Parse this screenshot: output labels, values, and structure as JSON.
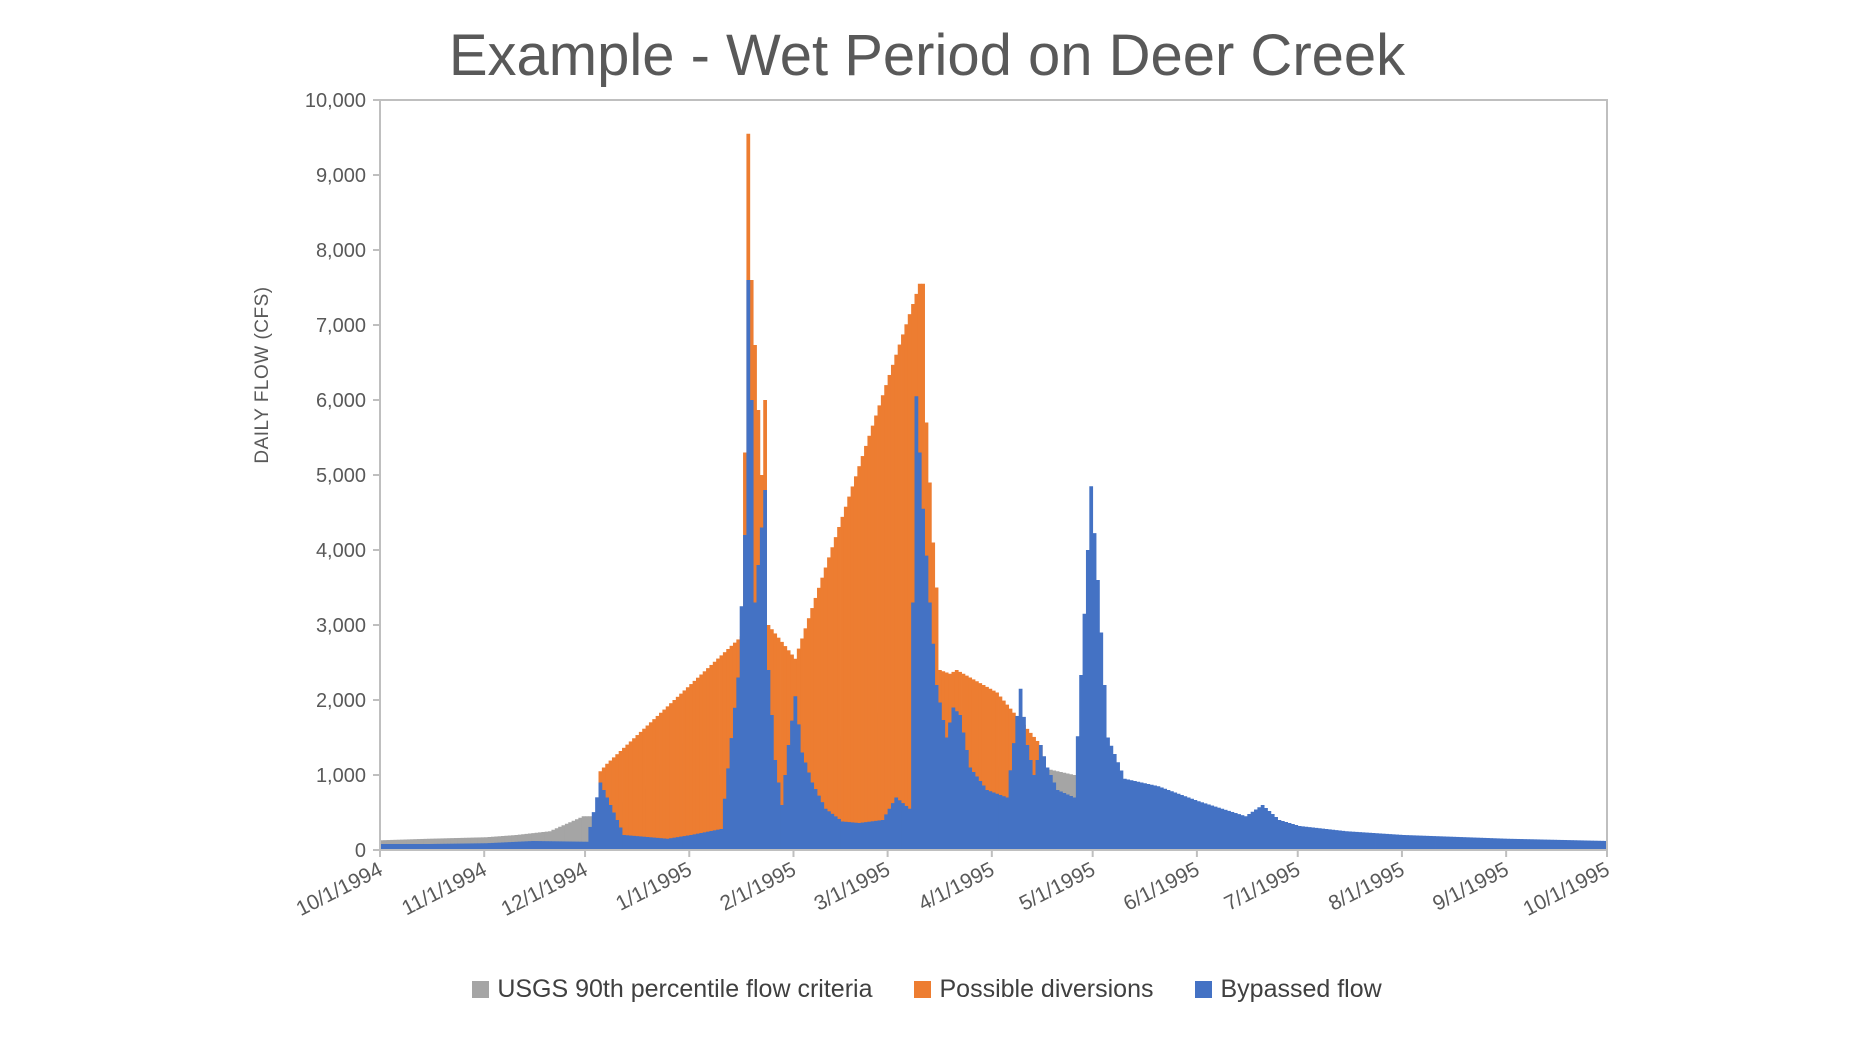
{
  "chart_data": {
    "type": "bar",
    "stacked": true,
    "title": "Example - Wet Period on Deer Creek",
    "xlabel": "",
    "ylabel": "DAILY FLOW (CFS)",
    "ylim": [
      0,
      10000
    ],
    "y_ticks": [
      "0",
      "1,000",
      "2,000",
      "3,000",
      "4,000",
      "5,000",
      "6,000",
      "7,000",
      "8,000",
      "9,000",
      "10,000"
    ],
    "x_range": [
      "10/1/1994",
      "10/1/1995"
    ],
    "x_ticks": [
      "10/1/1994",
      "11/1/1994",
      "12/1/1994",
      "1/1/1995",
      "2/1/1995",
      "3/1/1995",
      "4/1/1995",
      "5/1/1995",
      "6/1/1995",
      "7/1/1995",
      "8/1/1995",
      "9/1/1995",
      "10/1/1995"
    ],
    "grid": false,
    "legend_position": "bottom",
    "colors": {
      "criteria": "#a5a5a5",
      "diversions": "#ed7d31",
      "bypassed": "#4472c4",
      "axis": "#bfbfbf"
    },
    "series": [
      {
        "name": "USGS 90th percentile flow criteria",
        "points": [
          [
            "10/1/1994",
            130
          ],
          [
            "10/15/1994",
            150
          ],
          [
            "11/1/1994",
            170
          ],
          [
            "11/10/1994",
            200
          ],
          [
            "11/20/1994",
            250
          ],
          [
            "11/25/1994",
            350
          ],
          [
            "11/30/1994",
            450
          ],
          [
            "12/5/1994",
            450
          ],
          [
            "12/10/1994",
            600
          ],
          [
            "12/15/1994",
            700
          ],
          [
            "12/20/1994",
            900
          ],
          [
            "12/25/1994",
            1300
          ],
          [
            "12/28/1994",
            1500
          ],
          [
            "1/1/1995",
            1200
          ],
          [
            "1/5/1995",
            1000
          ],
          [
            "1/10/1995",
            1000
          ],
          [
            "1/20/1995",
            1800
          ],
          [
            "1/25/1995",
            1600
          ],
          [
            "1/28/1995",
            1400
          ],
          [
            "2/1/1995",
            1500
          ],
          [
            "2/5/1995",
            1400
          ],
          [
            "2/10/1995",
            1600
          ],
          [
            "2/15/1995",
            1500
          ],
          [
            "2/20/1995",
            1800
          ],
          [
            "2/24/1995",
            2000
          ],
          [
            "2/27/1995",
            1500
          ],
          [
            "3/1/1995",
            1400
          ],
          [
            "3/5/1995",
            1350
          ],
          [
            "3/10/1995",
            1300
          ],
          [
            "3/15/1995",
            1200
          ],
          [
            "3/20/1995",
            1100
          ],
          [
            "3/25/1995",
            1200
          ],
          [
            "3/30/1995",
            1200
          ],
          [
            "4/5/1995",
            1050
          ],
          [
            "4/10/1995",
            1150
          ],
          [
            "4/15/1995",
            1100
          ],
          [
            "4/20/1995",
            1050
          ],
          [
            "4/25/1995",
            1000
          ],
          [
            "4/30/1995",
            950
          ]
        ]
      },
      {
        "name": "Possible diversions",
        "points": [
          [
            "12/5/1994",
            1050
          ],
          [
            "12/7/1994",
            1150
          ],
          [
            "1/16/1995",
            2850
          ],
          [
            "1/17/1995",
            5300
          ],
          [
            "1/18/1995",
            9550
          ],
          [
            "1/19/1995",
            7600
          ],
          [
            "1/22/1995",
            5000
          ],
          [
            "1/23/1995",
            6000
          ],
          [
            "1/24/1995",
            3000
          ],
          [
            "2/1/1995",
            2550
          ],
          [
            "3/10/1995",
            7550
          ],
          [
            "3/11/1995",
            7550
          ],
          [
            "3/12/1995",
            5700
          ],
          [
            "3/14/1995",
            4100
          ],
          [
            "3/15/1995",
            3500
          ],
          [
            "3/16/1995",
            2400
          ],
          [
            "3/19/1995",
            2350
          ],
          [
            "3/21/1995",
            2400
          ],
          [
            "4/2/1995",
            2100
          ],
          [
            "4/15/1995",
            1400
          ]
        ]
      },
      {
        "name": "Bypassed flow",
        "points": [
          [
            "10/1/1994",
            80
          ],
          [
            "10/15/1994",
            80
          ],
          [
            "11/1/1994",
            90
          ],
          [
            "11/15/1994",
            120
          ],
          [
            "12/1/1994",
            110
          ],
          [
            "12/5/1994",
            900
          ],
          [
            "12/8/1994",
            600
          ],
          [
            "12/12/1994",
            200
          ],
          [
            "12/25/1994",
            150
          ],
          [
            "1/1/1995",
            200
          ],
          [
            "1/10/1995",
            280
          ],
          [
            "1/15/1995",
            2300
          ],
          [
            "1/17/1995",
            4200
          ],
          [
            "1/18/1995",
            7600
          ],
          [
            "1/19/1995",
            6000
          ],
          [
            "1/20/1995",
            3300
          ],
          [
            "1/22/1995",
            4300
          ],
          [
            "1/23/1995",
            4800
          ],
          [
            "1/24/1995",
            2400
          ],
          [
            "1/26/1995",
            1200
          ],
          [
            "1/28/1995",
            600
          ],
          [
            "1/30/1995",
            1400
          ],
          [
            "2/1/1995",
            2050
          ],
          [
            "2/3/1995",
            1300
          ],
          [
            "2/6/1995",
            900
          ],
          [
            "2/10/1995",
            550
          ],
          [
            "2/15/1995",
            380
          ],
          [
            "2/20/1995",
            360
          ],
          [
            "2/27/1995",
            400
          ],
          [
            "3/3/1995",
            700
          ],
          [
            "3/7/1995",
            550
          ],
          [
            "3/9/1995",
            6050
          ],
          [
            "3/11/1995",
            4550
          ],
          [
            "3/13/1995",
            3300
          ],
          [
            "3/15/1995",
            2200
          ],
          [
            "3/18/1995",
            1500
          ],
          [
            "3/20/1995",
            1900
          ],
          [
            "3/22/1995",
            1800
          ],
          [
            "3/25/1995",
            1100
          ],
          [
            "3/30/1995",
            800
          ],
          [
            "4/5/1995",
            700
          ],
          [
            "4/9/1995",
            2150
          ],
          [
            "4/11/1995",
            1400
          ],
          [
            "4/13/1995",
            1000
          ],
          [
            "4/15/1995",
            1400
          ],
          [
            "4/17/1995",
            1100
          ],
          [
            "4/20/1995",
            800
          ],
          [
            "4/25/1995",
            700
          ],
          [
            "4/28/1995",
            3150
          ],
          [
            "4/30/1995",
            4850
          ],
          [
            "5/2/1995",
            3600
          ],
          [
            "5/5/1995",
            1500
          ],
          [
            "5/10/1995",
            950
          ],
          [
            "5/20/1995",
            850
          ],
          [
            "6/1/1995",
            650
          ],
          [
            "6/15/1995",
            450
          ],
          [
            "6/20/1995",
            600
          ],
          [
            "6/25/1995",
            400
          ],
          [
            "7/1/1995",
            320
          ],
          [
            "7/15/1995",
            250
          ],
          [
            "8/1/1995",
            200
          ],
          [
            "9/1/1995",
            150
          ],
          [
            "10/1/1995",
            120
          ]
        ]
      }
    ]
  }
}
